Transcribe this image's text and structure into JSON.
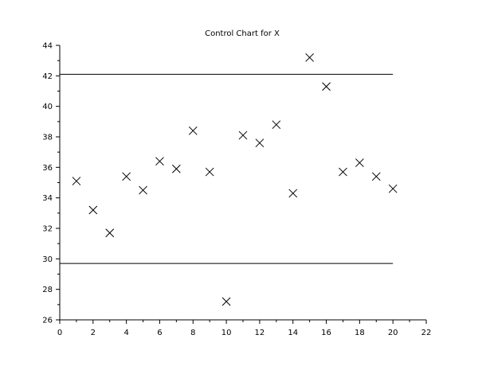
{
  "chart_data": {
    "type": "scatter",
    "title": "Control Chart for X",
    "xlabel": "",
    "ylabel": "",
    "xlim": [
      0,
      22
    ],
    "ylim": [
      26,
      44
    ],
    "x_ticks": [
      0,
      2,
      4,
      6,
      8,
      10,
      12,
      14,
      16,
      18,
      20,
      22
    ],
    "y_ticks": [
      26,
      28,
      30,
      32,
      34,
      36,
      38,
      40,
      42,
      44
    ],
    "grid": false,
    "marker": "x",
    "points": [
      {
        "x": 1,
        "y": 35.1
      },
      {
        "x": 2,
        "y": 33.2
      },
      {
        "x": 3,
        "y": 31.7
      },
      {
        "x": 4,
        "y": 35.4
      },
      {
        "x": 5,
        "y": 34.5
      },
      {
        "x": 6,
        "y": 36.4
      },
      {
        "x": 7,
        "y": 35.9
      },
      {
        "x": 8,
        "y": 38.4
      },
      {
        "x": 9,
        "y": 35.7
      },
      {
        "x": 10,
        "y": 27.2
      },
      {
        "x": 11,
        "y": 38.1
      },
      {
        "x": 12,
        "y": 37.6
      },
      {
        "x": 13,
        "y": 38.8
      },
      {
        "x": 14,
        "y": 34.3
      },
      {
        "x": 15,
        "y": 43.2
      },
      {
        "x": 16,
        "y": 41.3
      },
      {
        "x": 17,
        "y": 35.7
      },
      {
        "x": 18,
        "y": 36.3
      },
      {
        "x": 19,
        "y": 35.4
      },
      {
        "x": 20,
        "y": 34.6
      }
    ],
    "control_limits": {
      "upper": {
        "y": 42.1,
        "x_range": [
          0,
          20
        ]
      },
      "lower": {
        "y": 29.7,
        "x_range": [
          0,
          20
        ]
      }
    }
  }
}
